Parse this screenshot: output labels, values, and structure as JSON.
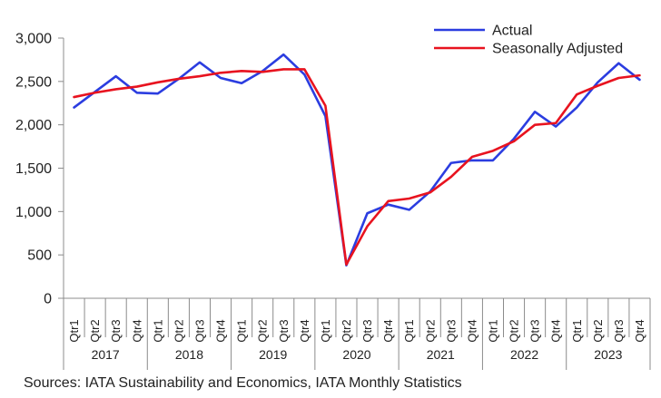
{
  "chart_data": {
    "type": "line",
    "title": "",
    "xlabel": "",
    "ylabel": "",
    "ylim": [
      0,
      3000
    ],
    "yticks": [
      0,
      500,
      1000,
      1500,
      2000,
      2500,
      3000
    ],
    "ytick_labels": [
      "0",
      "500",
      "1,000",
      "1,500",
      "2,000",
      "2,500",
      "3,000"
    ],
    "grid": false,
    "legend_position": "top-right",
    "years": [
      "2017",
      "2018",
      "2019",
      "2020",
      "2021",
      "2022",
      "2023"
    ],
    "quarters": [
      "Qtr1",
      "Qtr2",
      "Qtr3",
      "Qtr4"
    ],
    "categories": [
      "2017 Qtr1",
      "2017 Qtr2",
      "2017 Qtr3",
      "2017 Qtr4",
      "2018 Qtr1",
      "2018 Qtr2",
      "2018 Qtr3",
      "2018 Qtr4",
      "2019 Qtr1",
      "2019 Qtr2",
      "2019 Qtr3",
      "2019 Qtr4",
      "2020 Qtr1",
      "2020 Qtr2",
      "2020 Qtr3",
      "2020 Qtr4",
      "2021 Qtr1",
      "2021 Qtr2",
      "2021 Qtr3",
      "2021 Qtr4",
      "2022 Qtr1",
      "2022 Qtr2",
      "2022 Qtr3",
      "2022 Qtr4",
      "2023 Qtr1",
      "2023 Qtr2",
      "2023 Qtr3",
      "2023 Qtr4"
    ],
    "series": [
      {
        "name": "Actual",
        "color": "#2b3de0",
        "values": [
          2200,
          2380,
          2560,
          2370,
          2360,
          2530,
          2720,
          2540,
          2480,
          2620,
          2810,
          2580,
          2100,
          380,
          980,
          1080,
          1020,
          1230,
          1560,
          1590,
          1590,
          1840,
          2150,
          1980,
          2200,
          2490,
          2710,
          2520
        ]
      },
      {
        "name": "Seasonally Adjusted",
        "color": "#e8131f",
        "values": [
          2320,
          2370,
          2410,
          2440,
          2490,
          2530,
          2560,
          2600,
          2620,
          2610,
          2640,
          2640,
          2220,
          390,
          830,
          1120,
          1150,
          1220,
          1400,
          1630,
          1700,
          1810,
          2000,
          2020,
          2350,
          2450,
          2540,
          2570
        ]
      }
    ]
  },
  "source_note": "Sources: IATA Sustainability and Economics, IATA Monthly Statistics"
}
